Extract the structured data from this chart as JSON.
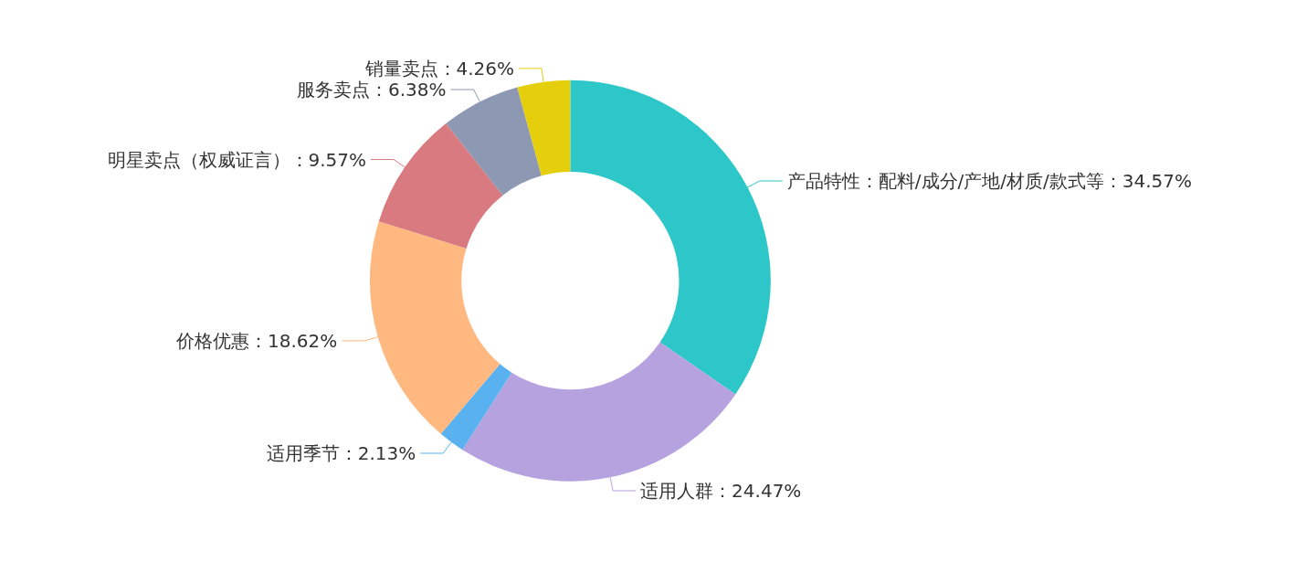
{
  "chart_data": {
    "type": "donut",
    "categories": [
      "产品特性：配料/成分/产地/材质/款式等",
      "适用人群",
      "适用季节",
      "价格优惠",
      "明星卖点（权威证言）",
      "服务卖点",
      "销量卖点"
    ],
    "values": [
      34.57,
      24.47,
      2.13,
      18.62,
      9.57,
      6.38,
      4.26
    ],
    "value_labels": [
      "34.57%",
      "24.47%",
      "2.13%",
      "18.62%",
      "9.57%",
      "6.38%",
      "4.26%"
    ],
    "colors": [
      "#2ec7c9",
      "#b6a2de",
      "#5ab1ef",
      "#ffb980",
      "#d87a80",
      "#8d98b3",
      "#e5cf0d"
    ],
    "legend": false
  }
}
